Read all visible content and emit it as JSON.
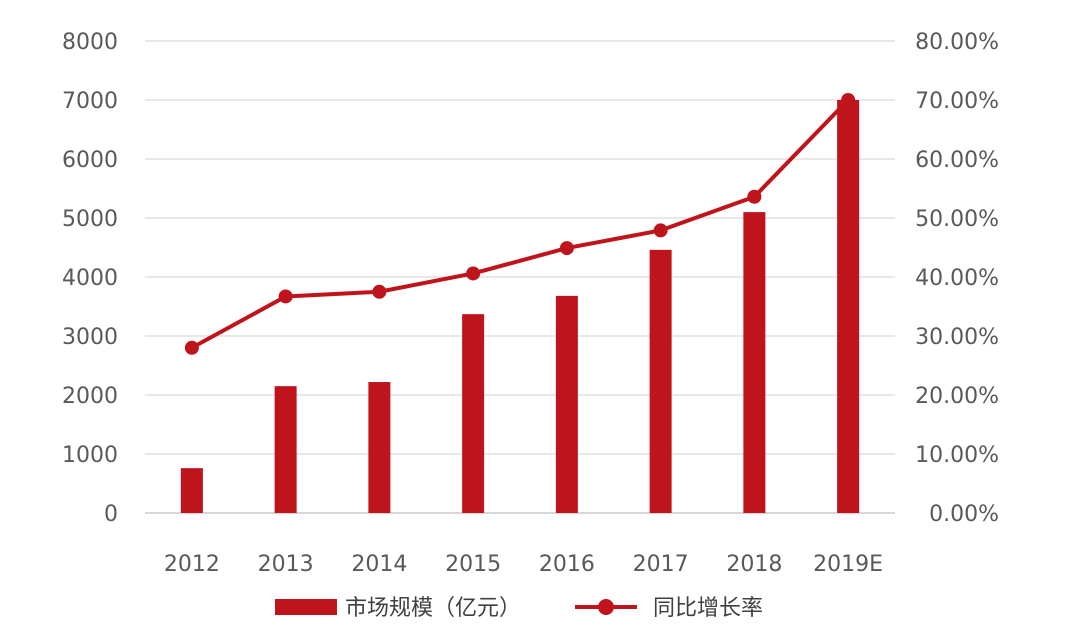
{
  "chart_data": {
    "type": "bar",
    "categories": [
      "2012",
      "2013",
      "2014",
      "2015",
      "2016",
      "2017",
      "2018",
      "2019E"
    ],
    "series": [
      {
        "name": "市场规模（亿元）",
        "type": "bar",
        "axis": "left",
        "color": "#C0141C",
        "values": [
          760,
          2150,
          2220,
          3370,
          3680,
          4460,
          5100,
          7000
        ]
      },
      {
        "name": "同比增长率",
        "type": "line",
        "axis": "right",
        "color": "#C0141C",
        "values": [
          28.0,
          36.7,
          37.5,
          40.6,
          44.9,
          47.9,
          53.6,
          70.0
        ]
      }
    ],
    "y_left": {
      "ylim": [
        0,
        8000
      ],
      "ticks": [
        "0",
        "1000",
        "2000",
        "3000",
        "4000",
        "5000",
        "6000",
        "7000",
        "8000"
      ]
    },
    "y_right": {
      "ylim": [
        0,
        80
      ],
      "ticks": [
        "0.00%",
        "10.00%",
        "20.00%",
        "30.00%",
        "40.00%",
        "50.00%",
        "60.00%",
        "70.00%",
        "80.00%"
      ]
    },
    "grid": true,
    "legend": "bottom"
  }
}
